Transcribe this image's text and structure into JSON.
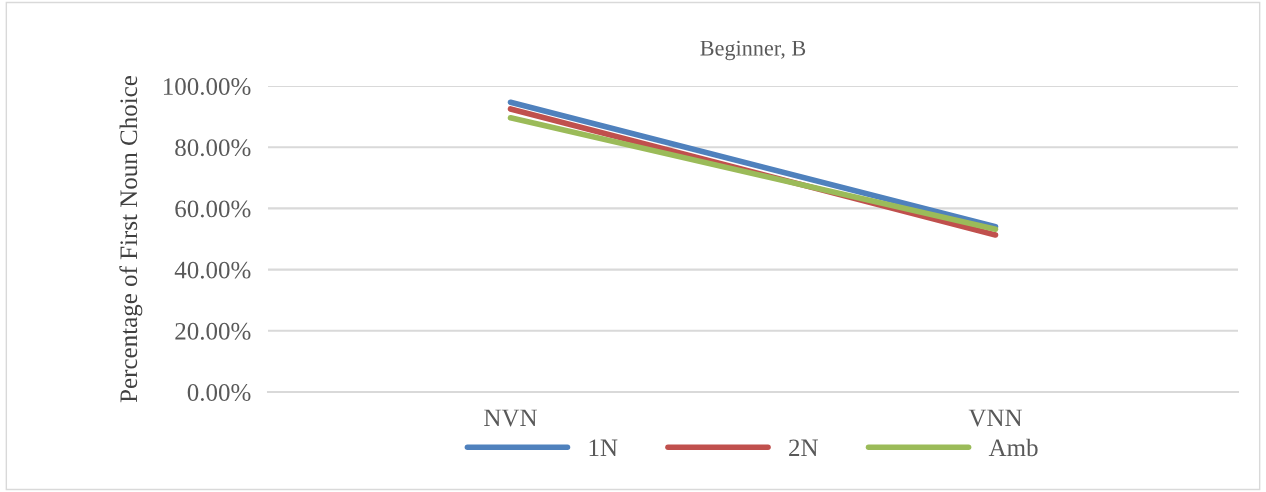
{
  "chart_data": {
    "type": "line",
    "title": "Beginner, B",
    "ylabel": "Percentage of First Noun Choice",
    "categories": [
      "NVN",
      "VNN"
    ],
    "series": [
      {
        "name": "1N",
        "color": "#4f81bd",
        "values": [
          94.7,
          54.0
        ]
      },
      {
        "name": "2N",
        "color": "#c0504d",
        "values": [
          92.5,
          51.3
        ]
      },
      {
        "name": "Amb",
        "color": "#9bbb59",
        "values": [
          89.6,
          53.2
        ]
      }
    ],
    "ylim": [
      0,
      100
    ],
    "yticks": [
      {
        "value": 0,
        "label": "0.00%"
      },
      {
        "value": 20,
        "label": "20.00%"
      },
      {
        "value": 40,
        "label": "40.00%"
      },
      {
        "value": 60,
        "label": "60.00%"
      },
      {
        "value": 80,
        "label": "80.00%"
      },
      {
        "value": 100,
        "label": "100.00%"
      }
    ],
    "grid": "y",
    "legend": "bottom",
    "marker": "none",
    "line_style": "solid"
  }
}
